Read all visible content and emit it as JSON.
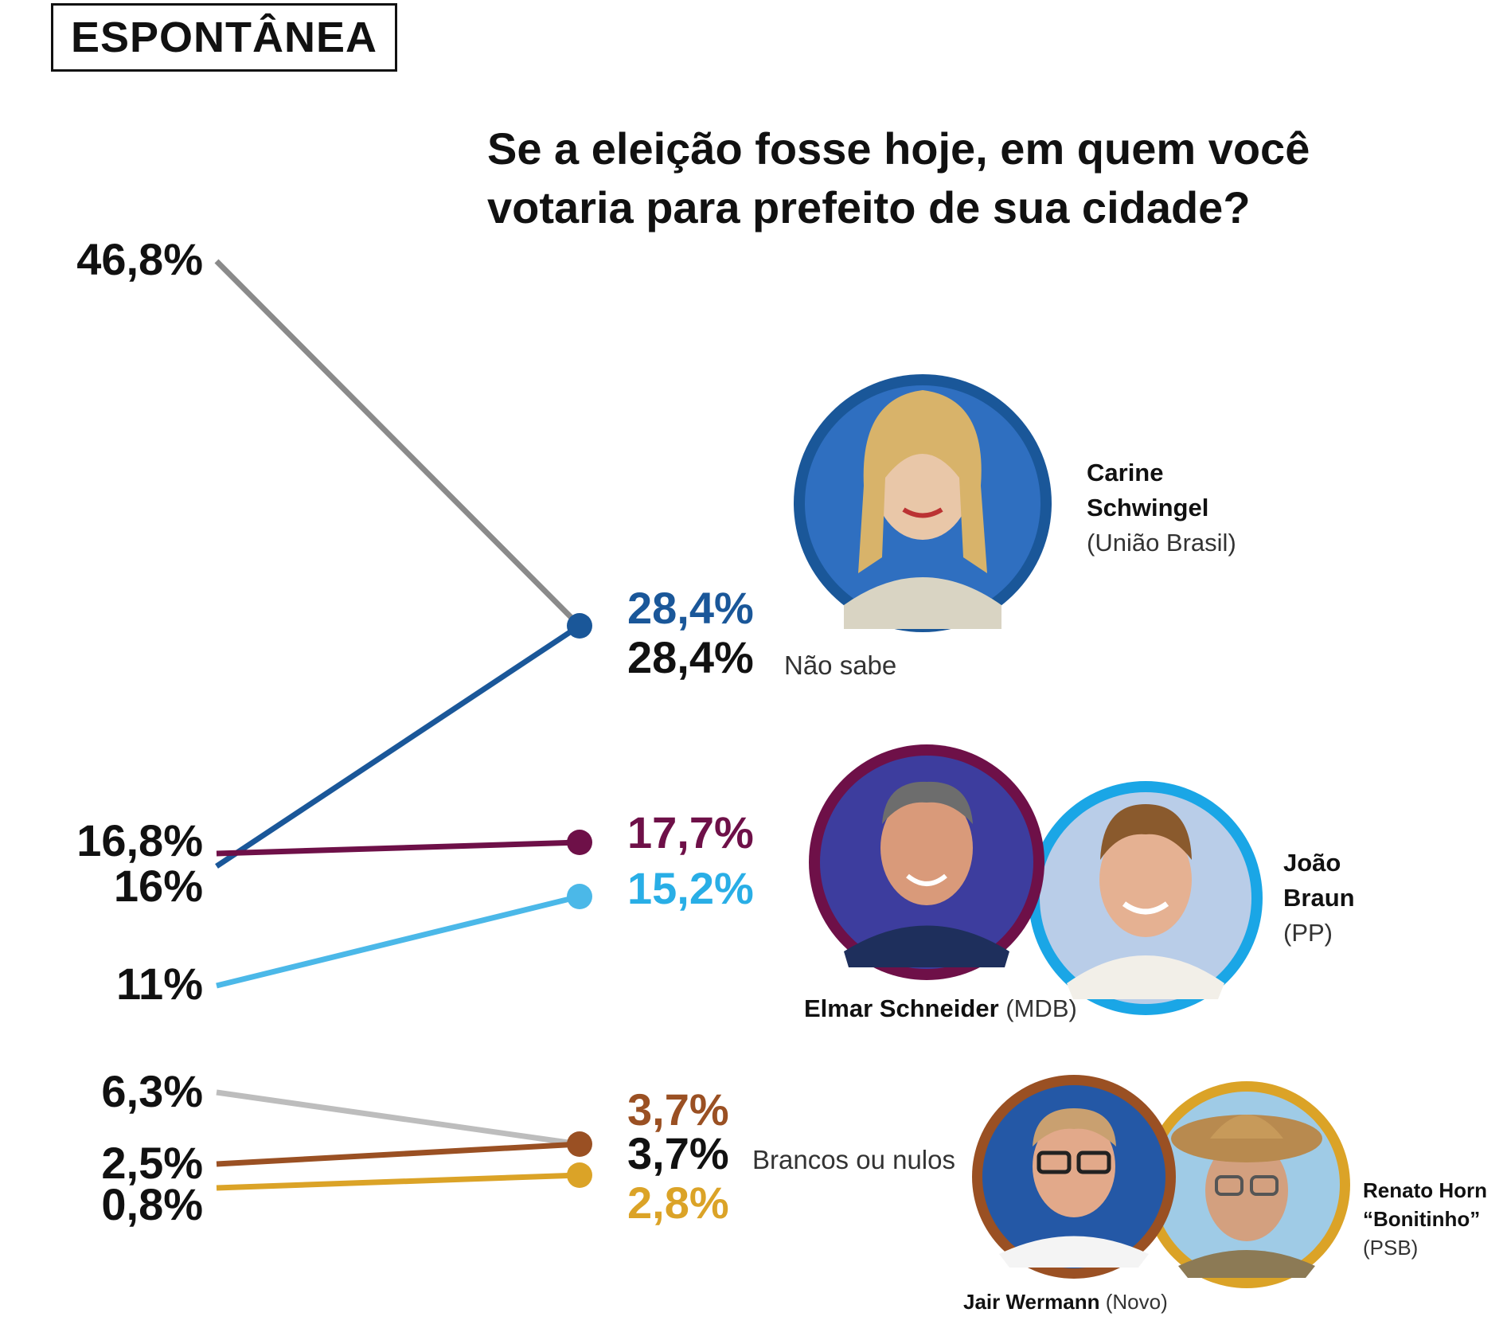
{
  "header": {
    "tag": "ESPONTÂNEA",
    "question_line1": "Se a eleição fosse hoje, em quem você",
    "question_line2": "votaria para prefeito de sua cidade?"
  },
  "chart_data": {
    "type": "line",
    "series": [
      {
        "name": "Não sabe",
        "start": 46.8,
        "end": 28.4,
        "start_label": "46,8%",
        "end_label": "28,4%",
        "color": "#8a8a8a",
        "end_color": "#111111"
      },
      {
        "name": "Carine Schwingel",
        "start": 16,
        "end": 28.4,
        "start_label": "16%",
        "end_label": "28,4%",
        "color": "#1a5799",
        "end_color": "#1a5799"
      },
      {
        "name": "Elmar Schneider",
        "start": 16.8,
        "end": 17.7,
        "start_label": "16,8%",
        "end_label": "17,7%",
        "color": "#6e1048",
        "end_color": "#6e1048"
      },
      {
        "name": "João Braun",
        "start": 11,
        "end": 15.2,
        "start_label": "11%",
        "end_label": "15,2%",
        "color": "#4bb8e8",
        "end_color": "#29aee6"
      },
      {
        "name": "Brancos ou nulos",
        "start": 6.3,
        "end": 3.7,
        "start_label": "6,3%",
        "end_label": "3,7%",
        "color": "#bdbdbd",
        "end_color": "#111111"
      },
      {
        "name": "Jair Wermann",
        "start": 2.5,
        "end": 3.7,
        "start_label": "2,5%",
        "end_label": "3,7%",
        "color": "#9a5023",
        "end_color": "#9a5023"
      },
      {
        "name": "Renato Horn",
        "start": 0.8,
        "end": 2.8,
        "start_label": "0,8%",
        "end_label": "2,8%",
        "color": "#dba327",
        "end_color": "#dba327"
      }
    ],
    "end_notes": {
      "nao_sabe": "Não sabe",
      "brancos": "Brancos ou nulos"
    }
  },
  "candidates": {
    "carine": {
      "first": "Carine",
      "last": "Schwingel",
      "party": "(União Brasil)",
      "ring": "#1a5799",
      "bg": "#2f6fc0"
    },
    "elmar": {
      "name": "Elmar Schneider",
      "party": "(MDB)",
      "ring": "#6e1048",
      "bg": "#3d3d9e"
    },
    "joao": {
      "first": "João",
      "last": "Braun",
      "party": "(PP)",
      "ring": "#1aa6e6",
      "bg": "#b9cde8"
    },
    "jair": {
      "name": "Jair Wermann",
      "party": "(Novo)",
      "ring": "#9a5023",
      "bg": "#2458a6"
    },
    "renato": {
      "first": "Renato Horn",
      "nick": "“Bonitinho”",
      "party": "(PSB)",
      "ring": "#dba327",
      "bg": "#9fcbe6"
    }
  }
}
